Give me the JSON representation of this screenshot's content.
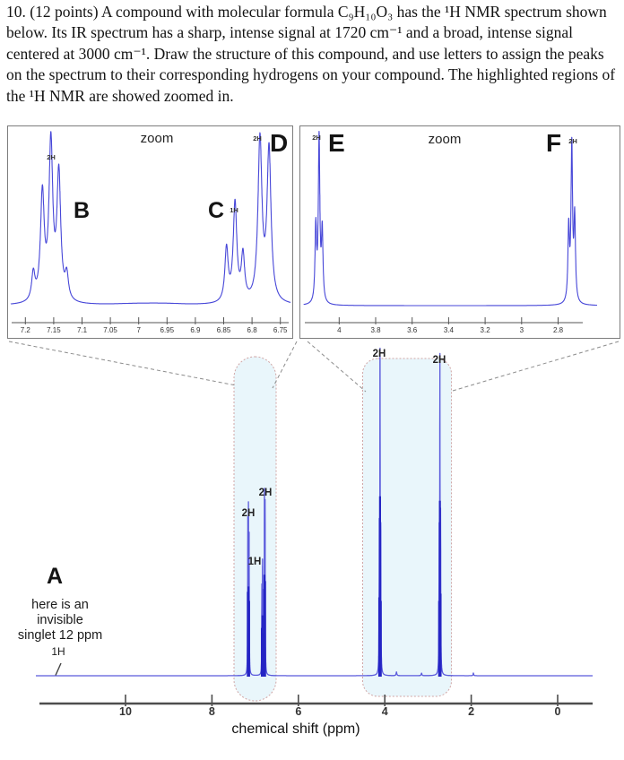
{
  "question_text": "10. (12 points)  A compound with molecular formula C₉H₁₀O₃ has the ¹H NMR spectrum shown below. Its IR spectrum has a sharp, intense signal at 1720 cm⁻¹ and a broad, intense signal centered at 3000 cm⁻¹.  Draw the structure of this compound, and use letters to assign the peaks on the spectrum to their corresponding hydrogens on your compound.  The highlighted regions of the ¹H NMR are showed zoomed in.",
  "colors": {
    "trace_blue": "#4747d8",
    "main_trace_blue": "#5b5bdc",
    "stem_blue": "#2525c4",
    "highlight_fill": "#e9f6fb",
    "highlight_border": "#d0a6a6",
    "callout_gray": "#8c8c8c",
    "axis_dark": "#4d4d4d",
    "panel_axis": "#555555",
    "text_dark": "#141414"
  },
  "chart_data": [
    {
      "id": "zoom-left",
      "type": "line",
      "title": "zoom",
      "x_domain": [
        7.245,
        6.727
      ],
      "x_ticks": [
        7.2,
        7.15,
        7.1,
        7.05,
        7,
        6.95,
        6.9,
        6.85,
        6.8,
        6.75
      ],
      "x_tick_labels": [
        "7.2",
        "7.15",
        "7.1",
        "7.05",
        "7",
        "6.95",
        "6.9",
        "6.85",
        "6.8",
        "6.75"
      ],
      "peaks": [
        {
          "ppm": 7.186,
          "h": 0.17,
          "w": 0.0035
        },
        {
          "ppm": 7.17,
          "h": 0.66,
          "w": 0.004
        },
        {
          "ppm": 7.155,
          "h": 0.97,
          "w": 0.004
        },
        {
          "ppm": 7.141,
          "h": 0.78,
          "w": 0.004
        },
        {
          "ppm": 7.127,
          "h": 0.15,
          "w": 0.0035
        },
        {
          "ppm": 7.0,
          "h": 0.01,
          "w": 0.06
        },
        {
          "ppm": 6.95,
          "h": 0.006,
          "w": 0.04
        },
        {
          "ppm": 6.845,
          "h": 0.33,
          "w": 0.0035
        },
        {
          "ppm": 6.83,
          "h": 0.61,
          "w": 0.0038
        },
        {
          "ppm": 6.816,
          "h": 0.28,
          "w": 0.0035
        },
        {
          "ppm": 6.786,
          "h": 1.0,
          "w": 0.0042
        },
        {
          "ppm": 6.77,
          "h": 0.94,
          "w": 0.0042
        }
      ],
      "assignments": [
        {
          "letter": "B",
          "integration": "2H",
          "ppm": 7.155
        },
        {
          "letter": "C",
          "integration": "1H",
          "ppm": 6.83
        },
        {
          "letter": "D",
          "integration": "2H",
          "ppm": 6.786
        }
      ]
    },
    {
      "id": "zoom-right",
      "type": "line",
      "title": "zoom",
      "x_domain": [
        4.215,
        2.49
      ],
      "x_ticks": [
        4,
        3.8,
        3.6,
        3.4,
        3.2,
        3,
        2.8
      ],
      "x_tick_labels": [
        "4",
        "3.8",
        "3.6",
        "3.4",
        "3.2",
        "3",
        "2.8"
      ],
      "peaks": [
        {
          "ppm": 4.128,
          "h": 0.45,
          "w": 0.005
        },
        {
          "ppm": 4.11,
          "h": 0.98,
          "w": 0.005
        },
        {
          "ppm": 4.093,
          "h": 0.42,
          "w": 0.005
        },
        {
          "ppm": 2.742,
          "h": 0.44,
          "w": 0.005
        },
        {
          "ppm": 2.725,
          "h": 0.93,
          "w": 0.005
        },
        {
          "ppm": 2.709,
          "h": 0.5,
          "w": 0.005
        }
      ],
      "assignments": [
        {
          "letter": "E",
          "integration": "2H",
          "ppm": 4.11
        },
        {
          "letter": "F",
          "integration": "2H",
          "ppm": 2.725
        }
      ]
    },
    {
      "id": "main-spectrum",
      "type": "line",
      "xlabel": "chemical shift (ppm)",
      "x_domain": [
        12.07,
        -0.81
      ],
      "x_ticks": [
        10,
        8,
        6,
        4,
        2,
        0
      ],
      "x_tick_labels": [
        "10",
        "8",
        "6",
        "4",
        "2",
        "0"
      ],
      "peaks": [
        {
          "ppm": 7.17,
          "h": 0.47,
          "w": 0.004
        },
        {
          "ppm": 7.155,
          "h": 0.5,
          "w": 0.004
        },
        {
          "ppm": 7.14,
          "h": 0.42,
          "w": 0.004
        },
        {
          "ppm": 6.845,
          "h": 0.27,
          "w": 0.0035
        },
        {
          "ppm": 6.83,
          "h": 0.34,
          "w": 0.0035
        },
        {
          "ppm": 6.816,
          "h": 0.24,
          "w": 0.0035
        },
        {
          "ppm": 6.786,
          "h": 0.565,
          "w": 0.004
        },
        {
          "ppm": 6.77,
          "h": 0.53,
          "w": 0.004
        },
        {
          "ppm": 4.128,
          "h": 0.44,
          "w": 0.0045
        },
        {
          "ppm": 4.11,
          "h": 1.0,
          "w": 0.0045
        },
        {
          "ppm": 4.093,
          "h": 0.42,
          "w": 0.0045
        },
        {
          "ppm": 3.73,
          "h": 0.012,
          "w": 0.01
        },
        {
          "ppm": 3.15,
          "h": 0.008,
          "w": 0.01
        },
        {
          "ppm": 2.742,
          "h": 0.42,
          "w": 0.0045
        },
        {
          "ppm": 2.725,
          "h": 0.975,
          "w": 0.0045
        },
        {
          "ppm": 2.709,
          "h": 0.46,
          "w": 0.0045
        },
        {
          "ppm": 1.95,
          "h": 0.009,
          "w": 0.008
        }
      ],
      "integrations": [
        {
          "text": "2H",
          "ppm": 7.155
        },
        {
          "text": "2H",
          "ppm": 6.786
        },
        {
          "text": "1H",
          "ppm": 6.83
        },
        {
          "text": "2H",
          "ppm": 4.11
        },
        {
          "text": "2H",
          "ppm": 2.725
        }
      ],
      "hidden_peak_note": {
        "label": "A",
        "lines": [
          "here is an",
          "invisible",
          "singlet 12 ppm"
        ],
        "integration": "1H"
      }
    }
  ]
}
